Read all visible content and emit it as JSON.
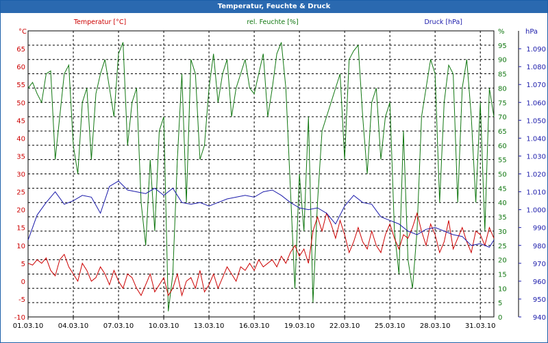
{
  "window": {
    "title": "Temperatur, Feuchte & Druck"
  },
  "chart_data": {
    "type": "line",
    "title": "Temperatur, Feuchte & Druck",
    "grid": true,
    "x_tick_labels": [
      "01.03.10",
      "04.03.10",
      "07.03.10",
      "10.03.10",
      "13.03.10",
      "16.03.10",
      "19.03.10",
      "22.03.10",
      "25.03.10",
      "28.03.10",
      "31.03.10"
    ],
    "x_range_days": [
      0,
      30.9
    ],
    "axes": {
      "temperature": {
        "unit": "°C",
        "side": "left",
        "ylim": [
          -10,
          70
        ],
        "ticks": [
          -10,
          -5,
          0,
          5,
          10,
          15,
          20,
          25,
          30,
          35,
          40,
          45,
          50,
          55,
          60,
          65
        ],
        "color": "#cc0000"
      },
      "humidity": {
        "unit": "%",
        "side": "right-inner",
        "ylim": [
          0,
          100
        ],
        "ticks": [
          0,
          5,
          10,
          15,
          20,
          25,
          30,
          35,
          40,
          45,
          50,
          55,
          60,
          65,
          70,
          75,
          80,
          85,
          90,
          95
        ],
        "color": "#117711"
      },
      "pressure": {
        "unit": "hPa",
        "side": "right-outer",
        "ylim": [
          940,
          1100
        ],
        "ticks": [
          940,
          950,
          960,
          970,
          980,
          990,
          1000,
          1010,
          1020,
          1030,
          1040,
          1050,
          1060,
          1070,
          1080,
          1090
        ],
        "tick_labels": [
          "940",
          "950",
          "960",
          "970",
          "980",
          "990",
          "1.000",
          "1.010",
          "1.020",
          "1.030",
          "1.040",
          "1.050",
          "1.060",
          "1.070",
          "1.080",
          "1.090"
        ],
        "color": "#1a1aaa"
      }
    },
    "series": [
      {
        "name": "Temperatur [°C]",
        "axis": "temperature",
        "color": "#cc0000",
        "x": [
          0,
          0.3,
          0.6,
          0.9,
          1.2,
          1.5,
          1.8,
          2.1,
          2.4,
          2.7,
          3,
          3.3,
          3.6,
          3.9,
          4.2,
          4.5,
          4.8,
          5.1,
          5.4,
          5.7,
          6,
          6.3,
          6.6,
          6.9,
          7.2,
          7.5,
          7.8,
          8.1,
          8.4,
          8.7,
          9,
          9.3,
          9.6,
          9.9,
          10.2,
          10.5,
          10.8,
          11.1,
          11.4,
          11.7,
          12,
          12.3,
          12.6,
          12.9,
          13.2,
          13.5,
          13.8,
          14.1,
          14.4,
          14.7,
          15,
          15.3,
          15.6,
          15.9,
          16.2,
          16.5,
          16.8,
          17.1,
          17.4,
          17.7,
          18,
          18.3,
          18.6,
          18.9,
          19.2,
          19.5,
          19.8,
          20.1,
          20.4,
          20.7,
          21,
          21.3,
          21.6,
          21.9,
          22.2,
          22.5,
          22.8,
          23.1,
          23.4,
          23.7,
          24,
          24.3,
          24.6,
          24.9,
          25.2,
          25.5,
          25.8,
          26.1,
          26.4,
          26.7,
          27,
          27.3,
          27.6,
          27.9,
          28.2,
          28.5,
          28.8,
          29.1,
          29.4,
          29.7,
          30,
          30.3,
          30.6,
          30.9
        ],
        "y": [
          5,
          4.5,
          6,
          5,
          6.5,
          3,
          1.5,
          6,
          7.5,
          4,
          2,
          0,
          5,
          3,
          0,
          1,
          4,
          2,
          -1,
          3,
          0,
          -2,
          2,
          1,
          -2,
          -4,
          -1,
          2,
          -3,
          -1,
          1,
          -4,
          -2,
          2,
          -4,
          0,
          1,
          -2,
          3,
          -3,
          -1,
          2,
          -2,
          1,
          4,
          2,
          0,
          4,
          3,
          5,
          3,
          6,
          4,
          5,
          6,
          4,
          7,
          5,
          8,
          10,
          7,
          9,
          5,
          14,
          18,
          14,
          19,
          16,
          12,
          17,
          13,
          8,
          11,
          15,
          11,
          9,
          14,
          10,
          8,
          13,
          16,
          12,
          9,
          13,
          12,
          15,
          19,
          14,
          10,
          16,
          13,
          8,
          11,
          17,
          9,
          12,
          15,
          11,
          8,
          14,
          13,
          10,
          15,
          12
        ]
      },
      {
        "name": "rel. Feuchte [%]",
        "axis": "humidity",
        "color": "#117711",
        "x": [
          0,
          0.3,
          0.6,
          0.9,
          1.2,
          1.5,
          1.8,
          2.1,
          2.4,
          2.7,
          3,
          3.3,
          3.6,
          3.9,
          4.2,
          4.5,
          4.8,
          5.1,
          5.4,
          5.7,
          6,
          6.3,
          6.6,
          6.9,
          7.2,
          7.5,
          7.8,
          8.1,
          8.4,
          8.7,
          9,
          9.3,
          9.6,
          9.9,
          10.2,
          10.5,
          10.8,
          11.1,
          11.4,
          11.7,
          12,
          12.3,
          12.6,
          12.9,
          13.2,
          13.5,
          13.8,
          14.1,
          14.4,
          14.7,
          15,
          15.3,
          15.6,
          15.9,
          16.2,
          16.5,
          16.8,
          17.1,
          17.4,
          17.7,
          18,
          18.3,
          18.6,
          18.9,
          19.2,
          19.5,
          19.8,
          20.1,
          20.4,
          20.7,
          21,
          21.3,
          21.6,
          21.9,
          22.2,
          22.5,
          22.8,
          23.1,
          23.4,
          23.7,
          24,
          24.3,
          24.6,
          24.9,
          25.2,
          25.5,
          25.8,
          26.1,
          26.4,
          26.7,
          27,
          27.3,
          27.6,
          27.9,
          28.2,
          28.5,
          28.8,
          29.1,
          29.4,
          29.7,
          30,
          30.3,
          30.6,
          30.9
        ],
        "y": [
          80,
          82,
          78,
          75,
          85,
          86,
          55,
          70,
          85,
          88,
          60,
          50,
          75,
          80,
          55,
          78,
          85,
          90,
          80,
          70,
          92,
          96,
          60,
          75,
          80,
          40,
          25,
          55,
          30,
          65,
          70,
          2,
          15,
          55,
          85,
          40,
          90,
          85,
          55,
          60,
          80,
          92,
          75,
          85,
          90,
          70,
          80,
          85,
          90,
          80,
          78,
          85,
          92,
          70,
          80,
          92,
          96,
          80,
          45,
          10,
          50,
          30,
          70,
          5,
          40,
          65,
          70,
          75,
          80,
          85,
          55,
          90,
          93,
          95,
          70,
          50,
          75,
          80,
          55,
          70,
          75,
          30,
          15,
          65,
          20,
          10,
          30,
          70,
          80,
          90,
          85,
          40,
          75,
          88,
          85,
          40,
          80,
          90,
          70,
          40,
          75,
          30,
          80,
          70
        ]
      },
      {
        "name": "Druck [hPa]",
        "axis": "pressure",
        "color": "#1a1aaa",
        "x": [
          0,
          0.6,
          1.2,
          1.8,
          2.4,
          3,
          3.6,
          4.2,
          4.8,
          5.4,
          6,
          6.6,
          7.2,
          7.8,
          8.4,
          9,
          9.6,
          10.2,
          10.8,
          11.4,
          12,
          12.6,
          13.2,
          13.8,
          14.4,
          15,
          15.6,
          16.2,
          16.8,
          17.4,
          18,
          18.6,
          19.2,
          19.8,
          20.4,
          21,
          21.6,
          22.2,
          22.8,
          23.4,
          24,
          24.6,
          25.2,
          25.8,
          26.4,
          27,
          27.6,
          28.2,
          28.8,
          29.4,
          30,
          30.6,
          30.9
        ],
        "y": [
          983,
          997,
          1004,
          1010,
          1003,
          1005,
          1008,
          1007,
          998,
          1013,
          1016,
          1011,
          1010,
          1009,
          1012,
          1008,
          1012,
          1004,
          1003,
          1004,
          1002,
          1004,
          1006,
          1007,
          1008,
          1007,
          1010,
          1011,
          1008,
          1004,
          1001,
          1000,
          1001,
          998,
          992,
          1002,
          1008,
          1004,
          1003,
          996,
          994,
          992,
          988,
          986,
          989,
          990,
          988,
          986,
          985,
          980,
          981,
          979,
          983
        ]
      }
    ]
  }
}
